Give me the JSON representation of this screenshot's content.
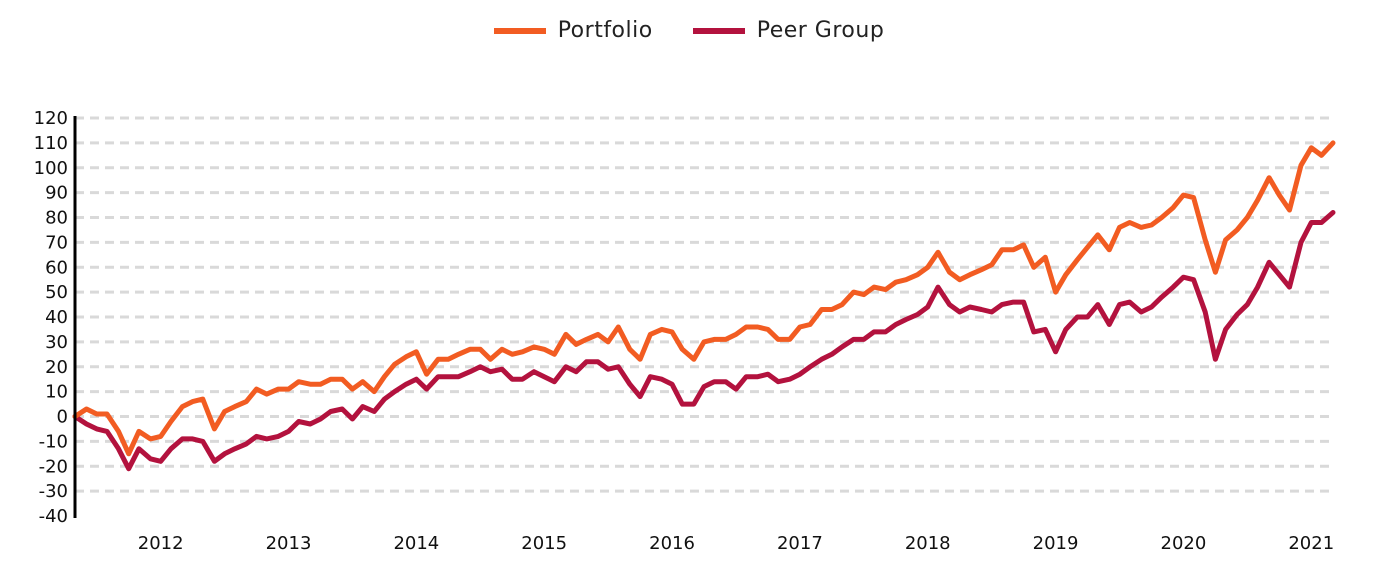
{
  "chart_data": {
    "type": "line",
    "title": "",
    "xlabel": "",
    "ylabel": "",
    "ylim": [
      -40,
      120
    ],
    "yticks": [
      -40,
      -30,
      -20,
      -10,
      0,
      10,
      20,
      30,
      40,
      50,
      60,
      70,
      80,
      90,
      100,
      110,
      120
    ],
    "x_start": 2011.33,
    "x_end": 2021.17,
    "xticks": [
      "2012",
      "2013",
      "2014",
      "2015",
      "2016",
      "2017",
      "2018",
      "2019",
      "2020",
      "2021"
    ],
    "grid": "horizontal dashed",
    "legend_position": "top-center",
    "series": [
      {
        "name": "Portfolio",
        "color": "#f25c22",
        "points": [
          [
            2011.33,
            0
          ],
          [
            2011.42,
            3
          ],
          [
            2011.5,
            1
          ],
          [
            2011.58,
            1
          ],
          [
            2011.67,
            -6
          ],
          [
            2011.75,
            -15
          ],
          [
            2011.83,
            -6
          ],
          [
            2011.92,
            -9
          ],
          [
            2012.0,
            -8
          ],
          [
            2012.08,
            -2
          ],
          [
            2012.17,
            4
          ],
          [
            2012.25,
            6
          ],
          [
            2012.33,
            7
          ],
          [
            2012.42,
            -5
          ],
          [
            2012.5,
            2
          ],
          [
            2012.58,
            4
          ],
          [
            2012.67,
            6
          ],
          [
            2012.75,
            11
          ],
          [
            2012.83,
            9
          ],
          [
            2012.92,
            11
          ],
          [
            2013.0,
            11
          ],
          [
            2013.08,
            14
          ],
          [
            2013.17,
            13
          ],
          [
            2013.25,
            13
          ],
          [
            2013.33,
            15
          ],
          [
            2013.42,
            15
          ],
          [
            2013.5,
            11
          ],
          [
            2013.58,
            14
          ],
          [
            2013.67,
            10
          ],
          [
            2013.75,
            16
          ],
          [
            2013.83,
            21
          ],
          [
            2013.92,
            24
          ],
          [
            2014.0,
            26
          ],
          [
            2014.08,
            17
          ],
          [
            2014.17,
            23
          ],
          [
            2014.25,
            23
          ],
          [
            2014.33,
            25
          ],
          [
            2014.42,
            27
          ],
          [
            2014.5,
            27
          ],
          [
            2014.58,
            23
          ],
          [
            2014.67,
            27
          ],
          [
            2014.75,
            25
          ],
          [
            2014.83,
            26
          ],
          [
            2014.92,
            28
          ],
          [
            2015.0,
            27
          ],
          [
            2015.08,
            25
          ],
          [
            2015.17,
            33
          ],
          [
            2015.25,
            29
          ],
          [
            2015.33,
            31
          ],
          [
            2015.42,
            33
          ],
          [
            2015.5,
            30
          ],
          [
            2015.58,
            36
          ],
          [
            2015.67,
            27
          ],
          [
            2015.75,
            23
          ],
          [
            2015.83,
            33
          ],
          [
            2015.92,
            35
          ],
          [
            2016.0,
            34
          ],
          [
            2016.08,
            27
          ],
          [
            2016.17,
            23
          ],
          [
            2016.25,
            30
          ],
          [
            2016.33,
            31
          ],
          [
            2016.42,
            31
          ],
          [
            2016.5,
            33
          ],
          [
            2016.58,
            36
          ],
          [
            2016.67,
            36
          ],
          [
            2016.75,
            35
          ],
          [
            2016.83,
            31
          ],
          [
            2016.92,
            31
          ],
          [
            2017.0,
            36
          ],
          [
            2017.08,
            37
          ],
          [
            2017.17,
            43
          ],
          [
            2017.25,
            43
          ],
          [
            2017.33,
            45
          ],
          [
            2017.42,
            50
          ],
          [
            2017.5,
            49
          ],
          [
            2017.58,
            52
          ],
          [
            2017.67,
            51
          ],
          [
            2017.75,
            54
          ],
          [
            2017.83,
            55
          ],
          [
            2017.92,
            57
          ],
          [
            2018.0,
            60
          ],
          [
            2018.08,
            66
          ],
          [
            2018.17,
            58
          ],
          [
            2018.25,
            55
          ],
          [
            2018.33,
            57
          ],
          [
            2018.42,
            59
          ],
          [
            2018.5,
            61
          ],
          [
            2018.58,
            67
          ],
          [
            2018.67,
            67
          ],
          [
            2018.75,
            69
          ],
          [
            2018.83,
            60
          ],
          [
            2018.92,
            64
          ],
          [
            2019.0,
            50
          ],
          [
            2019.08,
            57
          ],
          [
            2019.17,
            63
          ],
          [
            2019.25,
            68
          ],
          [
            2019.33,
            73
          ],
          [
            2019.42,
            67
          ],
          [
            2019.5,
            76
          ],
          [
            2019.58,
            78
          ],
          [
            2019.67,
            76
          ],
          [
            2019.75,
            77
          ],
          [
            2019.83,
            80
          ],
          [
            2019.92,
            84
          ],
          [
            2020.0,
            89
          ],
          [
            2020.08,
            88
          ],
          [
            2020.17,
            71
          ],
          [
            2020.25,
            58
          ],
          [
            2020.33,
            71
          ],
          [
            2020.42,
            75
          ],
          [
            2020.5,
            80
          ],
          [
            2020.58,
            87
          ],
          [
            2020.67,
            96
          ],
          [
            2020.75,
            89
          ],
          [
            2020.83,
            83
          ],
          [
            2020.92,
            101
          ],
          [
            2021.0,
            108
          ],
          [
            2021.08,
            105
          ],
          [
            2021.17,
            110
          ]
        ]
      },
      {
        "name": "Peer Group",
        "color": "#b3123e",
        "points": [
          [
            2011.33,
            0
          ],
          [
            2011.42,
            -3
          ],
          [
            2011.5,
            -5
          ],
          [
            2011.58,
            -6
          ],
          [
            2011.67,
            -13
          ],
          [
            2011.75,
            -21
          ],
          [
            2011.83,
            -13
          ],
          [
            2011.92,
            -17
          ],
          [
            2012.0,
            -18
          ],
          [
            2012.08,
            -13
          ],
          [
            2012.17,
            -9
          ],
          [
            2012.25,
            -9
          ],
          [
            2012.33,
            -10
          ],
          [
            2012.42,
            -18
          ],
          [
            2012.5,
            -15
          ],
          [
            2012.58,
            -13
          ],
          [
            2012.67,
            -11
          ],
          [
            2012.75,
            -8
          ],
          [
            2012.83,
            -9
          ],
          [
            2012.92,
            -8
          ],
          [
            2013.0,
            -6
          ],
          [
            2013.08,
            -2
          ],
          [
            2013.17,
            -3
          ],
          [
            2013.25,
            -1
          ],
          [
            2013.33,
            2
          ],
          [
            2013.42,
            3
          ],
          [
            2013.5,
            -1
          ],
          [
            2013.58,
            4
          ],
          [
            2013.67,
            2
          ],
          [
            2013.75,
            7
          ],
          [
            2013.83,
            10
          ],
          [
            2013.92,
            13
          ],
          [
            2014.0,
            15
          ],
          [
            2014.08,
            11
          ],
          [
            2014.17,
            16
          ],
          [
            2014.25,
            16
          ],
          [
            2014.33,
            16
          ],
          [
            2014.42,
            18
          ],
          [
            2014.5,
            20
          ],
          [
            2014.58,
            18
          ],
          [
            2014.67,
            19
          ],
          [
            2014.75,
            15
          ],
          [
            2014.83,
            15
          ],
          [
            2014.92,
            18
          ],
          [
            2015.0,
            16
          ],
          [
            2015.08,
            14
          ],
          [
            2015.17,
            20
          ],
          [
            2015.25,
            18
          ],
          [
            2015.33,
            22
          ],
          [
            2015.42,
            22
          ],
          [
            2015.5,
            19
          ],
          [
            2015.58,
            20
          ],
          [
            2015.67,
            13
          ],
          [
            2015.75,
            8
          ],
          [
            2015.83,
            16
          ],
          [
            2015.92,
            15
          ],
          [
            2016.0,
            13
          ],
          [
            2016.08,
            5
          ],
          [
            2016.17,
            5
          ],
          [
            2016.25,
            12
          ],
          [
            2016.33,
            14
          ],
          [
            2016.42,
            14
          ],
          [
            2016.5,
            11
          ],
          [
            2016.58,
            16
          ],
          [
            2016.67,
            16
          ],
          [
            2016.75,
            17
          ],
          [
            2016.83,
            14
          ],
          [
            2016.92,
            15
          ],
          [
            2017.0,
            17
          ],
          [
            2017.08,
            20
          ],
          [
            2017.17,
            23
          ],
          [
            2017.25,
            25
          ],
          [
            2017.33,
            28
          ],
          [
            2017.42,
            31
          ],
          [
            2017.5,
            31
          ],
          [
            2017.58,
            34
          ],
          [
            2017.67,
            34
          ],
          [
            2017.75,
            37
          ],
          [
            2017.83,
            39
          ],
          [
            2017.92,
            41
          ],
          [
            2018.0,
            44
          ],
          [
            2018.08,
            52
          ],
          [
            2018.17,
            45
          ],
          [
            2018.25,
            42
          ],
          [
            2018.33,
            44
          ],
          [
            2018.42,
            43
          ],
          [
            2018.5,
            42
          ],
          [
            2018.58,
            45
          ],
          [
            2018.67,
            46
          ],
          [
            2018.75,
            46
          ],
          [
            2018.83,
            34
          ],
          [
            2018.92,
            35
          ],
          [
            2019.0,
            26
          ],
          [
            2019.08,
            35
          ],
          [
            2019.17,
            40
          ],
          [
            2019.25,
            40
          ],
          [
            2019.33,
            45
          ],
          [
            2019.42,
            37
          ],
          [
            2019.5,
            45
          ],
          [
            2019.58,
            46
          ],
          [
            2019.67,
            42
          ],
          [
            2019.75,
            44
          ],
          [
            2019.83,
            48
          ],
          [
            2019.92,
            52
          ],
          [
            2020.0,
            56
          ],
          [
            2020.08,
            55
          ],
          [
            2020.17,
            42
          ],
          [
            2020.25,
            23
          ],
          [
            2020.33,
            35
          ],
          [
            2020.42,
            41
          ],
          [
            2020.5,
            45
          ],
          [
            2020.58,
            52
          ],
          [
            2020.67,
            62
          ],
          [
            2020.75,
            57
          ],
          [
            2020.83,
            52
          ],
          [
            2020.92,
            70
          ],
          [
            2021.0,
            78
          ],
          [
            2021.08,
            78
          ],
          [
            2021.17,
            82
          ]
        ]
      }
    ]
  }
}
